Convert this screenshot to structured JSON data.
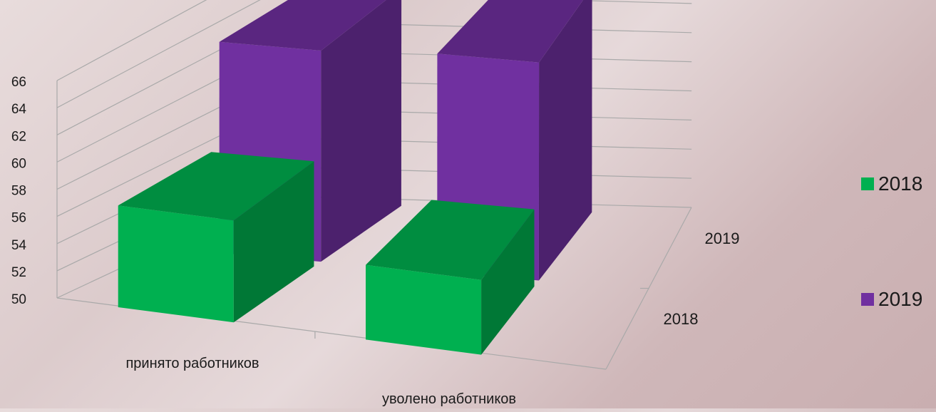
{
  "chart_data": {
    "type": "bar",
    "categories": [
      "принято работников",
      "уволено работников"
    ],
    "depth_categories": [
      "2018",
      "2019"
    ],
    "series": [
      {
        "name": "2018",
        "values": [
          57.5,
          55.5
        ],
        "color": "#00b050"
      },
      {
        "name": "2019",
        "values": [
          65,
          65.5
        ],
        "color": "#7030a0"
      }
    ],
    "ylim": [
      50,
      66
    ],
    "yticks": [
      50,
      52,
      54,
      56,
      58,
      60,
      62,
      64,
      66
    ],
    "grid": true,
    "legend": "right"
  }
}
